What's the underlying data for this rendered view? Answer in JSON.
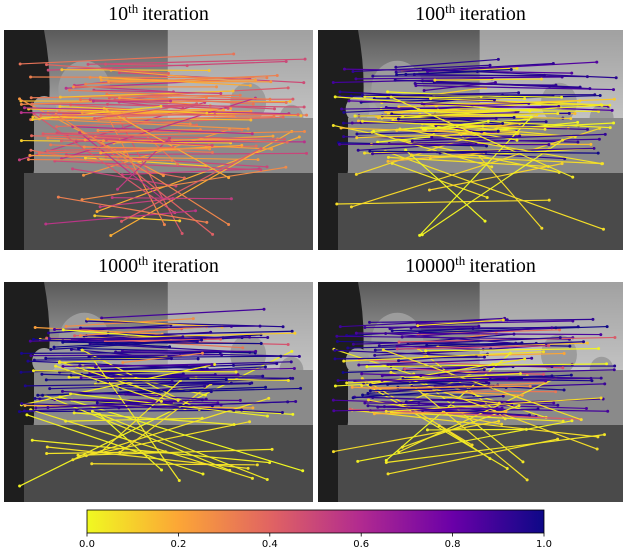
{
  "panels": [
    {
      "title": {
        "number": "10",
        "sup": "th",
        "text": "iteration"
      }
    },
    {
      "title": {
        "number": "100",
        "sup": "th",
        "text": "iteration"
      }
    },
    {
      "title": {
        "number": "1000",
        "sup": "th",
        "text": "iteration"
      }
    },
    {
      "title": {
        "number": "10000",
        "sup": "th",
        "text": "iteration"
      }
    }
  ],
  "colorbar": {
    "lim": [
      0,
      1
    ],
    "ticks": [
      {
        "value": 0,
        "label": "0.0"
      },
      {
        "value": 0.2,
        "label": "0.2"
      },
      {
        "value": 0.4,
        "label": "0.4"
      },
      {
        "value": 0.6,
        "label": "0.6"
      },
      {
        "value": 0.8,
        "label": "0.8"
      },
      {
        "value": 1,
        "label": "1.0"
      }
    ],
    "colormap": [
      "#f0f921",
      "#fca636",
      "#e16462",
      "#b12a90",
      "#6a00a8",
      "#0d0887"
    ]
  }
}
